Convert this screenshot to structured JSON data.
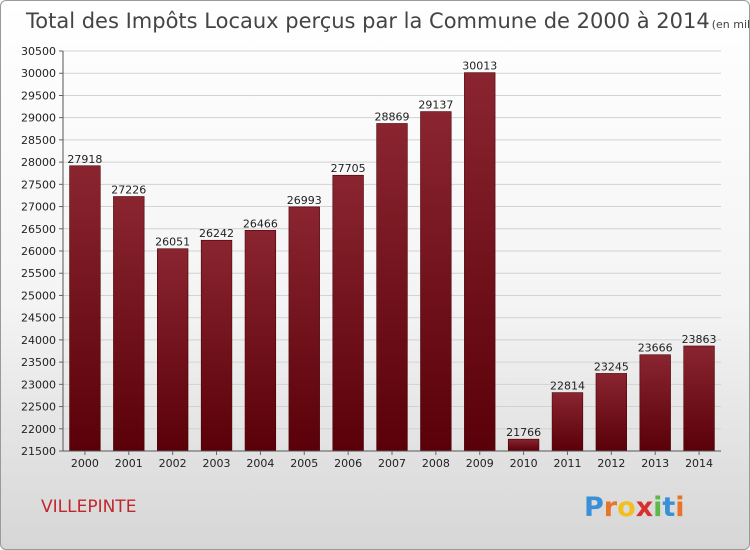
{
  "chart_data": {
    "type": "bar",
    "title": "Total des Impôts Locaux perçus par la Commune de 2000 à 2014",
    "unit_note": "(en milliers d'€)",
    "categories": [
      "2000",
      "2001",
      "2002",
      "2003",
      "2004",
      "2005",
      "2006",
      "2007",
      "2008",
      "2009",
      "2010",
      "2011",
      "2012",
      "2013",
      "2014"
    ],
    "values": [
      27918,
      27226,
      26051,
      26242,
      26466,
      26993,
      27705,
      28869,
      29137,
      30013,
      21766,
      22814,
      23245,
      23666,
      23863
    ],
    "yticks": [
      "21500",
      "22000",
      "22500",
      "23000",
      "23500",
      "24000",
      "24500",
      "25000",
      "25500",
      "26000",
      "26500",
      "27000",
      "27500",
      "28000",
      "28500",
      "29000",
      "29500",
      "30000",
      "30500"
    ],
    "ylim": [
      21500,
      30500
    ],
    "grid": true,
    "legend": "none",
    "xlabel": "",
    "ylabel": "",
    "bar_color": "#6e0f1a"
  },
  "commune": "VILLEPINTE",
  "logo": {
    "text": "Proxiti",
    "letters": [
      "P",
      "r",
      "o",
      "x",
      "i",
      "t",
      "i"
    ],
    "colors": [
      "#3a8fd6",
      "#e8732a",
      "#f0c020",
      "#d83030",
      "#5cb848",
      "#3a8fd6",
      "#e8732a"
    ]
  }
}
